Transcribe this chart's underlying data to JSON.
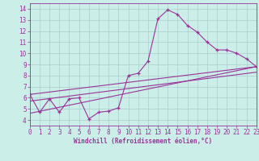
{
  "xlabel": "Windchill (Refroidissement éolien,°C)",
  "bg_color": "#cceee8",
  "grid_color": "#aacccc",
  "line_color": "#993399",
  "xlim": [
    0,
    23
  ],
  "ylim": [
    3.5,
    14.5
  ],
  "xticks": [
    0,
    1,
    2,
    3,
    4,
    5,
    6,
    7,
    8,
    9,
    10,
    11,
    12,
    13,
    14,
    15,
    16,
    17,
    18,
    19,
    20,
    21,
    22,
    23
  ],
  "yticks": [
    4,
    5,
    6,
    7,
    8,
    9,
    10,
    11,
    12,
    13,
    14
  ],
  "main_x": [
    0,
    1,
    2,
    3,
    4,
    5,
    6,
    7,
    8,
    9,
    10,
    11,
    12,
    13,
    14,
    15,
    16,
    17,
    18,
    19,
    20,
    21,
    22,
    23
  ],
  "main_y": [
    6.3,
    4.7,
    5.9,
    4.7,
    5.9,
    6.0,
    4.1,
    4.7,
    4.8,
    5.1,
    8.0,
    8.2,
    9.3,
    13.1,
    13.9,
    13.5,
    12.5,
    11.9,
    11.0,
    10.3,
    10.3,
    10.0,
    9.5,
    8.8
  ],
  "trend1_x": [
    0,
    23
  ],
  "trend1_y": [
    6.3,
    8.8
  ],
  "trend2_x": [
    0,
    23
  ],
  "trend2_y": [
    4.6,
    8.8
  ],
  "trend3_x": [
    0,
    23
  ],
  "trend3_y": [
    5.7,
    8.3
  ]
}
